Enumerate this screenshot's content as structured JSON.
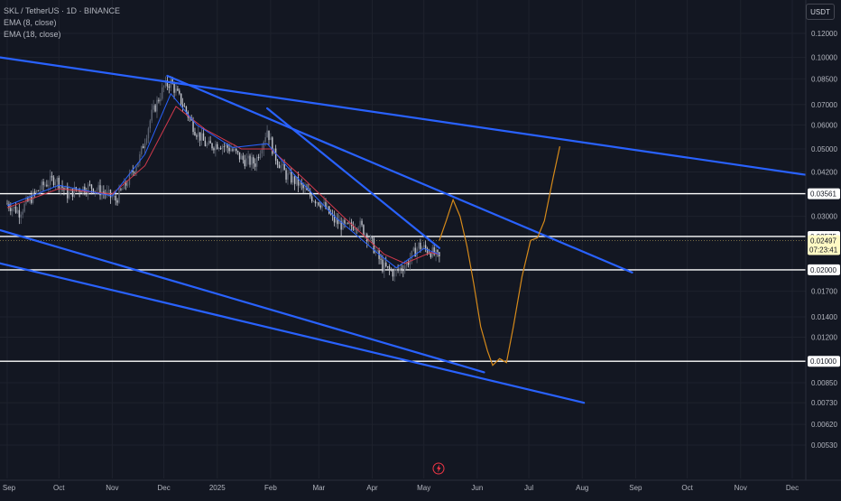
{
  "legend": {
    "symbol": "SKL / TetherUS · 1D · BINANCE",
    "ema1": "EMA (8, close)",
    "ema2": "EMA (18, close)"
  },
  "currency_button": "USDT",
  "colors": {
    "background": "#131722",
    "trendline": "#2962ff",
    "horizontal_line": "#ffffff",
    "projection": "#d68a1a",
    "candle_up": "#5c6270",
    "candle_down": "#c4c7cf",
    "ema_fast": "#2962ff",
    "ema_slow": "#d3394c",
    "price_label": "#fff9c4",
    "alert_icon": "#f23645"
  },
  "chart_data": {
    "type": "candlestick",
    "symbol": "SKL / TetherUS",
    "interval": "1D",
    "exchange": "BINANCE",
    "y_scale": "log",
    "ylim": [
      0.0051,
      0.13
    ],
    "y_ticks": [
      "0.12000",
      "0.10000",
      "0.08500",
      "0.07000",
      "0.06000",
      "0.05000",
      "0.04200",
      "0.03000",
      "0.01700",
      "0.01400",
      "0.01200",
      "0.00850",
      "0.00730",
      "0.00620",
      "0.00530"
    ],
    "x_ticks": [
      "Sep",
      "Oct",
      "Nov",
      "Dec",
      "2025",
      "Feb",
      "Mar",
      "Apr",
      "May",
      "Jun",
      "Jul",
      "Aug",
      "Sep",
      "Oct",
      "Nov",
      "Dec"
    ],
    "x_tick_dates": [
      "2024-09-01",
      "2024-10-01",
      "2024-11-01",
      "2024-12-01",
      "2025-01-01",
      "2025-02-01",
      "2025-03-01",
      "2025-04-01",
      "2025-05-01",
      "2025-06-01",
      "2025-07-01",
      "2025-08-01",
      "2025-09-01",
      "2025-10-01",
      "2025-11-01",
      "2025-12-01"
    ],
    "price_series": [
      {
        "x": "2024-09-01",
        "y": 0.033
      },
      {
        "x": "2024-09-08",
        "y": 0.031
      },
      {
        "x": "2024-09-15",
        "y": 0.0345
      },
      {
        "x": "2024-09-22",
        "y": 0.038
      },
      {
        "x": "2024-09-29",
        "y": 0.04
      },
      {
        "x": "2024-10-06",
        "y": 0.0355
      },
      {
        "x": "2024-10-13",
        "y": 0.037
      },
      {
        "x": "2024-10-20",
        "y": 0.0375
      },
      {
        "x": "2024-10-27",
        "y": 0.036
      },
      {
        "x": "2024-11-03",
        "y": 0.034
      },
      {
        "x": "2024-11-10",
        "y": 0.039
      },
      {
        "x": "2024-11-17",
        "y": 0.047
      },
      {
        "x": "2024-11-24",
        "y": 0.065
      },
      {
        "x": "2024-12-01",
        "y": 0.08
      },
      {
        "x": "2024-12-05",
        "y": 0.083
      },
      {
        "x": "2024-12-12",
        "y": 0.07
      },
      {
        "x": "2024-12-19",
        "y": 0.058
      },
      {
        "x": "2024-12-26",
        "y": 0.051
      },
      {
        "x": "2025-01-02",
        "y": 0.052
      },
      {
        "x": "2025-01-09",
        "y": 0.05
      },
      {
        "x": "2025-01-16",
        "y": 0.046
      },
      {
        "x": "2025-01-23",
        "y": 0.045
      },
      {
        "x": "2025-01-30",
        "y": 0.058
      },
      {
        "x": "2025-02-03",
        "y": 0.048
      },
      {
        "x": "2025-02-10",
        "y": 0.041
      },
      {
        "x": "2025-02-17",
        "y": 0.0385
      },
      {
        "x": "2025-02-24",
        "y": 0.035
      },
      {
        "x": "2025-03-03",
        "y": 0.033
      },
      {
        "x": "2025-03-10",
        "y": 0.029
      },
      {
        "x": "2025-03-17",
        "y": 0.0275
      },
      {
        "x": "2025-03-24",
        "y": 0.0285
      },
      {
        "x": "2025-03-31",
        "y": 0.025
      },
      {
        "x": "2025-04-07",
        "y": 0.0205
      },
      {
        "x": "2025-04-14",
        "y": 0.0195
      },
      {
        "x": "2025-04-21",
        "y": 0.021
      },
      {
        "x": "2025-04-28",
        "y": 0.024
      },
      {
        "x": "2025-05-05",
        "y": 0.023
      },
      {
        "x": "2025-05-10",
        "y": 0.0218
      }
    ],
    "ema_fast": [
      {
        "x": "2024-09-01",
        "y": 0.0325
      },
      {
        "x": "2024-10-01",
        "y": 0.038
      },
      {
        "x": "2024-11-01",
        "y": 0.035
      },
      {
        "x": "2024-11-20",
        "y": 0.048
      },
      {
        "x": "2024-12-05",
        "y": 0.076
      },
      {
        "x": "2024-12-20",
        "y": 0.06
      },
      {
        "x": "2025-01-10",
        "y": 0.0505
      },
      {
        "x": "2025-01-30",
        "y": 0.052
      },
      {
        "x": "2025-02-15",
        "y": 0.041
      },
      {
        "x": "2025-03-10",
        "y": 0.03
      },
      {
        "x": "2025-04-05",
        "y": 0.0225
      },
      {
        "x": "2025-04-15",
        "y": 0.0203
      },
      {
        "x": "2025-05-01",
        "y": 0.0235
      },
      {
        "x": "2025-05-10",
        "y": 0.0225
      }
    ],
    "ema_slow": [
      {
        "x": "2024-09-01",
        "y": 0.032
      },
      {
        "x": "2024-10-01",
        "y": 0.037
      },
      {
        "x": "2024-11-01",
        "y": 0.0355
      },
      {
        "x": "2024-11-20",
        "y": 0.044
      },
      {
        "x": "2024-12-08",
        "y": 0.069
      },
      {
        "x": "2024-12-25",
        "y": 0.058
      },
      {
        "x": "2025-01-15",
        "y": 0.05
      },
      {
        "x": "2025-02-01",
        "y": 0.05
      },
      {
        "x": "2025-02-20",
        "y": 0.04
      },
      {
        "x": "2025-03-15",
        "y": 0.03
      },
      {
        "x": "2025-04-08",
        "y": 0.0225
      },
      {
        "x": "2025-04-20",
        "y": 0.021
      },
      {
        "x": "2025-05-05",
        "y": 0.0228
      },
      {
        "x": "2025-05-10",
        "y": 0.0225
      }
    ],
    "projection": [
      {
        "x": "2025-05-10",
        "y": 0.025
      },
      {
        "x": "2025-05-14",
        "y": 0.029
      },
      {
        "x": "2025-05-18",
        "y": 0.034
      },
      {
        "x": "2025-05-22",
        "y": 0.03
      },
      {
        "x": "2025-05-26",
        "y": 0.024
      },
      {
        "x": "2025-05-30",
        "y": 0.018
      },
      {
        "x": "2025-06-03",
        "y": 0.013
      },
      {
        "x": "2025-06-07",
        "y": 0.0108
      },
      {
        "x": "2025-06-10",
        "y": 0.0097
      },
      {
        "x": "2025-06-14",
        "y": 0.0102
      },
      {
        "x": "2025-06-18",
        "y": 0.0099
      },
      {
        "x": "2025-06-22",
        "y": 0.013
      },
      {
        "x": "2025-06-27",
        "y": 0.019
      },
      {
        "x": "2025-07-02",
        "y": 0.025
      },
      {
        "x": "2025-07-06",
        "y": 0.0255
      },
      {
        "x": "2025-07-10",
        "y": 0.029
      },
      {
        "x": "2025-07-15",
        "y": 0.04
      },
      {
        "x": "2025-07-19",
        "y": 0.051
      }
    ],
    "trendlines": [
      {
        "x1": "2024-08-28",
        "y1": 0.1,
        "x2": "2025-12-10",
        "y2": 0.041
      },
      {
        "x1": "2024-12-03",
        "y1": 0.087,
        "x2": "2025-08-30",
        "y2": 0.0196
      },
      {
        "x1": "2025-01-30",
        "y1": 0.068,
        "x2": "2025-05-10",
        "y2": 0.0236
      },
      {
        "x1": "2024-08-28",
        "y1": 0.027,
        "x2": "2025-06-05",
        "y2": 0.0092
      },
      {
        "x1": "2024-08-28",
        "y1": 0.021,
        "x2": "2025-08-02",
        "y2": 0.0073
      }
    ],
    "horizontal_levels": [
      {
        "label": "0.03561",
        "y": 0.03561
      },
      {
        "label": "0.02575",
        "y": 0.02575
      },
      {
        "label": "0.02000",
        "y": 0.02
      },
      {
        "label": "0.01000",
        "y": 0.01
      }
    ],
    "current_price": {
      "label": "0.02497",
      "y": 0.02497,
      "countdown": "07:23:41"
    }
  }
}
